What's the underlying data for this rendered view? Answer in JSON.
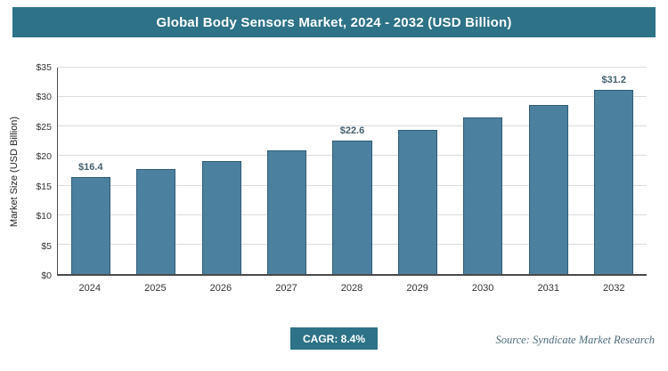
{
  "header": {
    "title": "Global Body Sensors Market, 2024 - 2032 (USD Billion)"
  },
  "chart_data": {
    "type": "bar",
    "title": "Global Body Sensors Market, 2024 - 2032 (USD Billion)",
    "categories": [
      "2024",
      "2025",
      "2026",
      "2027",
      "2028",
      "2029",
      "2030",
      "2031",
      "2032"
    ],
    "values": [
      16.4,
      17.8,
      19.2,
      20.9,
      22.6,
      24.5,
      26.5,
      28.7,
      31.2
    ],
    "data_labels": [
      "$16.4",
      "",
      "",
      "",
      "$22.6",
      "",
      "",
      "",
      "$31.2"
    ],
    "xlabel": "",
    "ylabel": "Market Size (USD Billion)",
    "ylim": [
      0,
      35
    ],
    "yticks": [
      "$0",
      "$5",
      "$10",
      "$15",
      "$20",
      "$25",
      "$30",
      "$35"
    ],
    "grid": true,
    "legend_position": "none",
    "bar_color": "#4c809f",
    "bar_border_color": "#2f5d77",
    "accent_color": "#2d7286"
  },
  "footer": {
    "cagr_label": "CAGR: 8.4%",
    "source": "Source: Syndicate Market Research"
  }
}
